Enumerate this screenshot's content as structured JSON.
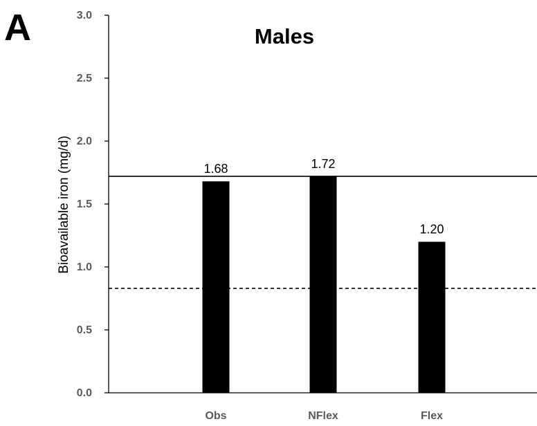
{
  "panel_label": "A",
  "chart_data": {
    "type": "bar",
    "title": "Males",
    "xlabel": "",
    "ylabel": "Bioavailable iron (mg/d)",
    "categories": [
      "Obs",
      "NFlex",
      "Flex"
    ],
    "values": [
      1.68,
      1.72,
      1.2
    ],
    "data_labels": [
      "1.68",
      "1.72",
      "1.20"
    ],
    "ylim": [
      0,
      3.0
    ],
    "yticks": [
      "0.0",
      "0.5",
      "1.0",
      "1.5",
      "2.0",
      "2.5",
      "3.0"
    ],
    "bar_color": "#000000",
    "reference_lines": [
      {
        "style": "solid",
        "y": 1.72
      },
      {
        "style": "dashed",
        "y": 0.83
      }
    ],
    "grid": false,
    "legend": "none"
  }
}
